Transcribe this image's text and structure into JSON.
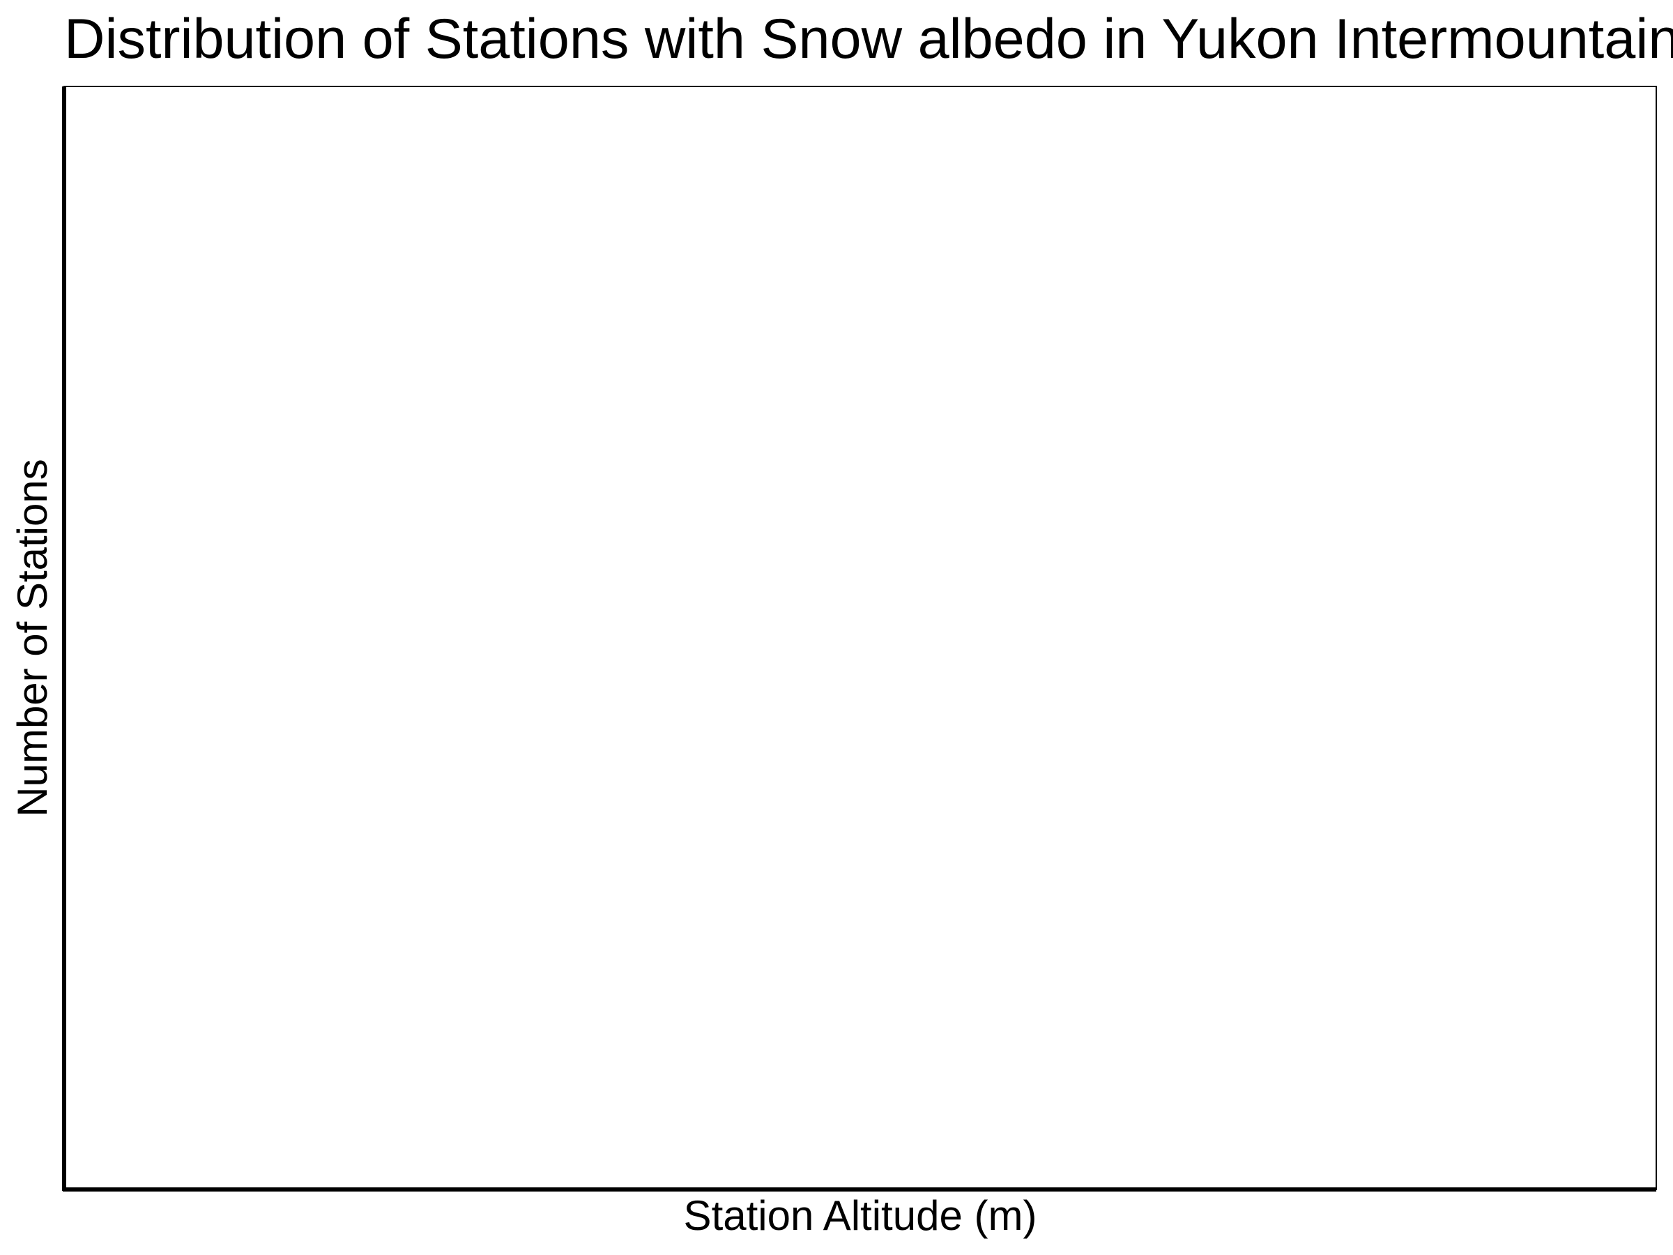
{
  "chart_data": {
    "type": "bar",
    "title": "Distribution of Stations with Snow albedo in Yukon Intermountain Plateau",
    "xlabel": "Station Altitude (m)",
    "ylabel": "Number of Stations",
    "categories": [],
    "values": [],
    "grid": false,
    "legend": "none"
  },
  "colors": {
    "background": "#ffffff",
    "axis": "#000000",
    "text": "#000000"
  }
}
